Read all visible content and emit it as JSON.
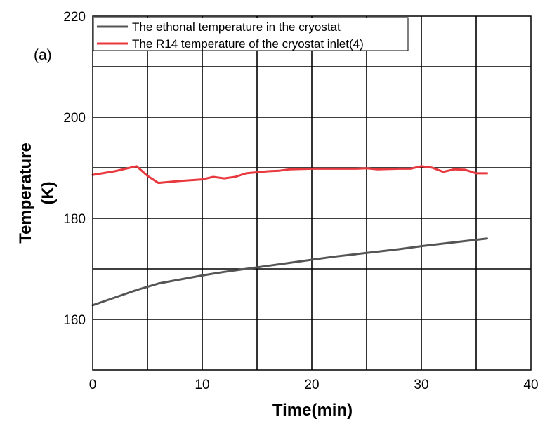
{
  "chart_data": {
    "type": "line",
    "panel_label": "(a)",
    "xlabel": "Time(min)",
    "ylabel_line1": "Temperature",
    "ylabel_line2": "(K)",
    "xlim": [
      0,
      40
    ],
    "ylim": [
      150,
      220
    ],
    "x_ticks": [
      0,
      10,
      20,
      30,
      40
    ],
    "y_ticks": [
      160,
      180,
      200,
      220
    ],
    "grid": true,
    "legend_position": "top-left",
    "series": [
      {
        "name": "The ethonal temperature in the cryostat",
        "color": "#555555",
        "points": [
          [
            0,
            162.8
          ],
          [
            2,
            164.3
          ],
          [
            4,
            165.8
          ],
          [
            6,
            167.1
          ],
          [
            8,
            167.9
          ],
          [
            10,
            168.7
          ],
          [
            12,
            169.4
          ],
          [
            14,
            170.0
          ],
          [
            16,
            170.6
          ],
          [
            18,
            171.2
          ],
          [
            20,
            171.8
          ],
          [
            22,
            172.4
          ],
          [
            24,
            172.9
          ],
          [
            26,
            173.4
          ],
          [
            28,
            173.9
          ],
          [
            30,
            174.5
          ],
          [
            32,
            175.0
          ],
          [
            34,
            175.5
          ],
          [
            36,
            176.0
          ]
        ]
      },
      {
        "name": "The R14 temperature of the cryostat inlet(4)",
        "color": "#e8393f",
        "points": [
          [
            0,
            188.6
          ],
          [
            2,
            189.3
          ],
          [
            4,
            190.3
          ],
          [
            5,
            188.4
          ],
          [
            6,
            187.0
          ],
          [
            8,
            187.4
          ],
          [
            10,
            187.7
          ],
          [
            11,
            188.2
          ],
          [
            12,
            187.9
          ],
          [
            13,
            188.2
          ],
          [
            14,
            188.9
          ],
          [
            16,
            189.3
          ],
          [
            17,
            189.4
          ],
          [
            18,
            189.7
          ],
          [
            20,
            189.8
          ],
          [
            22,
            189.8
          ],
          [
            24,
            189.8
          ],
          [
            25,
            189.9
          ],
          [
            26,
            189.7
          ],
          [
            28,
            189.8
          ],
          [
            29,
            189.8
          ],
          [
            30,
            190.3
          ],
          [
            31,
            190.0
          ],
          [
            32,
            189.2
          ],
          [
            33,
            189.7
          ],
          [
            34,
            189.6
          ],
          [
            35,
            188.9
          ],
          [
            36,
            188.9
          ]
        ]
      }
    ]
  }
}
